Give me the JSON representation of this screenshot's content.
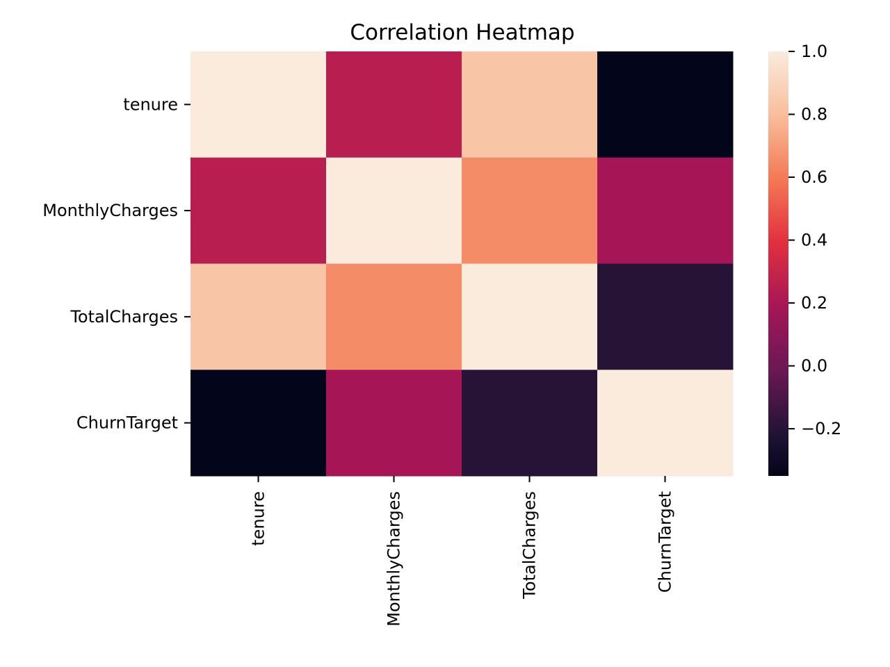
{
  "chart_data": {
    "type": "heatmap",
    "title": "Correlation Heatmap",
    "x_labels": [
      "tenure",
      "MonthlyCharges",
      "TotalCharges",
      "ChurnTarget"
    ],
    "y_labels": [
      "tenure",
      "MonthlyCharges",
      "TotalCharges",
      "ChurnTarget"
    ],
    "values": [
      [
        1.0,
        0.25,
        0.83,
        -0.35
      ],
      [
        0.25,
        1.0,
        0.65,
        0.19
      ],
      [
        0.83,
        0.65,
        1.0,
        -0.2
      ],
      [
        -0.35,
        0.19,
        -0.2,
        1.0
      ]
    ],
    "colormap": "rocket",
    "color_range": [
      -0.35,
      1.0
    ],
    "colorbar": {
      "placement": "right",
      "ticks": [
        1.0,
        0.8,
        0.6,
        0.4,
        0.2,
        0.0,
        -0.2
      ],
      "tick_labels": [
        "1.0",
        "0.8",
        "0.6",
        "0.4",
        "0.2",
        "0.0",
        "−0.2"
      ]
    },
    "grid": false
  }
}
